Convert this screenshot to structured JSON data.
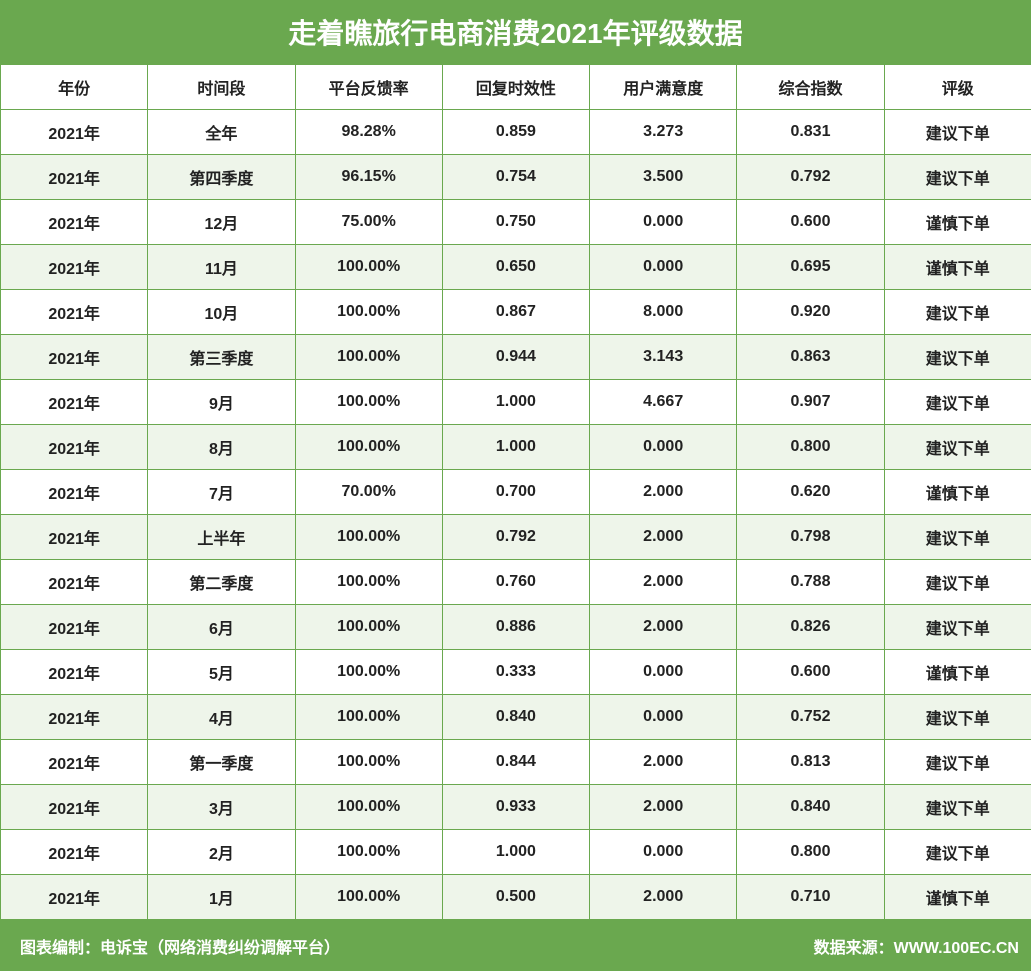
{
  "chart_data": {
    "type": "table",
    "title": "走着瞧旅行电商消费2021年评级数据",
    "columns": [
      "年份",
      "时间段",
      "平台反馈率",
      "回复时效性",
      "用户满意度",
      "综合指数",
      "评级"
    ],
    "rows": [
      [
        "2021年",
        "全年",
        "98.28%",
        "0.859",
        "3.273",
        "0.831",
        "建议下单"
      ],
      [
        "2021年",
        "第四季度",
        "96.15%",
        "0.754",
        "3.500",
        "0.792",
        "建议下单"
      ],
      [
        "2021年",
        "12月",
        "75.00%",
        "0.750",
        "0.000",
        "0.600",
        "谨慎下单"
      ],
      [
        "2021年",
        "11月",
        "100.00%",
        "0.650",
        "0.000",
        "0.695",
        "谨慎下单"
      ],
      [
        "2021年",
        "10月",
        "100.00%",
        "0.867",
        "8.000",
        "0.920",
        "建议下单"
      ],
      [
        "2021年",
        "第三季度",
        "100.00%",
        "0.944",
        "3.143",
        "0.863",
        "建议下单"
      ],
      [
        "2021年",
        "9月",
        "100.00%",
        "1.000",
        "4.667",
        "0.907",
        "建议下单"
      ],
      [
        "2021年",
        "8月",
        "100.00%",
        "1.000",
        "0.000",
        "0.800",
        "建议下单"
      ],
      [
        "2021年",
        "7月",
        "70.00%",
        "0.700",
        "2.000",
        "0.620",
        "谨慎下单"
      ],
      [
        "2021年",
        "上半年",
        "100.00%",
        "0.792",
        "2.000",
        "0.798",
        "建议下单"
      ],
      [
        "2021年",
        "第二季度",
        "100.00%",
        "0.760",
        "2.000",
        "0.788",
        "建议下单"
      ],
      [
        "2021年",
        "6月",
        "100.00%",
        "0.886",
        "2.000",
        "0.826",
        "建议下单"
      ],
      [
        "2021年",
        "5月",
        "100.00%",
        "0.333",
        "0.000",
        "0.600",
        "谨慎下单"
      ],
      [
        "2021年",
        "4月",
        "100.00%",
        "0.840",
        "0.000",
        "0.752",
        "建议下单"
      ],
      [
        "2021年",
        "第一季度",
        "100.00%",
        "0.844",
        "2.000",
        "0.813",
        "建议下单"
      ],
      [
        "2021年",
        "3月",
        "100.00%",
        "0.933",
        "2.000",
        "0.840",
        "建议下单"
      ],
      [
        "2021年",
        "2月",
        "100.00%",
        "1.000",
        "0.000",
        "0.800",
        "建议下单"
      ],
      [
        "2021年",
        "1月",
        "100.00%",
        "0.500",
        "2.000",
        "0.710",
        "谨慎下单"
      ]
    ]
  },
  "footer": {
    "left": "图表编制：电诉宝（网络消费纠纷调解平台）",
    "right": "数据来源：WWW.100EC.CN"
  },
  "colors": {
    "accent": "#6aa84f",
    "stripe": "#eef5ea"
  }
}
